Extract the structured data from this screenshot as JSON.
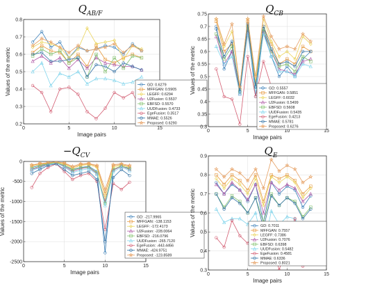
{
  "legend_labels": [
    "GD",
    "MFFGAN",
    "LEGFF",
    "U2Fusion",
    "EBFSD",
    "UUDFusion",
    "EgeFusion",
    "MMAE",
    "Proposed"
  ],
  "colors": [
    "#3a7fb8",
    "#e79a3f",
    "#ead35a",
    "#b05aa6",
    "#7fbf6a",
    "#7fd4ec",
    "#d25a6f",
    "#2f6fa3",
    "#e6a064"
  ],
  "markers": [
    "circle",
    "square",
    "diamond",
    "triangle",
    "square",
    "triangle",
    "circle",
    "circle",
    "star"
  ],
  "chart_data": [
    {
      "type": "line",
      "title_main": "Q",
      "title_sub": "AB/F",
      "title_prefix": "",
      "xlabel": "Image pairs",
      "ylabel": "Values of the metric",
      "xlim": [
        0,
        15
      ],
      "ylim": [
        0.2,
        0.8
      ],
      "xticks": [
        0,
        5,
        10,
        15
      ],
      "yticks": [
        0.2,
        0.3,
        0.4,
        0.5,
        0.6,
        0.7,
        0.8
      ],
      "ytick_labels": [
        "0.2",
        "0.3",
        "0.4",
        "0.5",
        "0.6",
        "0.7",
        "0.8"
      ],
      "x": [
        1,
        2,
        3,
        4,
        5,
        6,
        7,
        8,
        9,
        10,
        11,
        12,
        13
      ],
      "series": [
        {
          "name": "GD",
          "legend_value": "0.6279",
          "values": [
            0.67,
            0.73,
            0.64,
            0.67,
            0.58,
            0.64,
            0.62,
            0.63,
            0.65,
            0.64,
            0.6,
            0.66,
            0.62
          ]
        },
        {
          "name": "MFFGAN",
          "legend_value": "0.5905",
          "values": [
            0.61,
            0.65,
            0.62,
            0.61,
            0.55,
            0.6,
            0.53,
            0.65,
            0.57,
            0.55,
            0.58,
            0.6,
            0.58
          ]
        },
        {
          "name": "LEGFF",
          "legend_value": "0.6294",
          "values": [
            0.64,
            0.67,
            0.66,
            0.64,
            0.58,
            0.63,
            0.75,
            0.66,
            0.67,
            0.68,
            0.57,
            0.65,
            0.63
          ]
        },
        {
          "name": "U2Fusion",
          "legend_value": "0.5537",
          "values": [
            0.56,
            0.59,
            0.55,
            0.58,
            0.52,
            0.57,
            0.52,
            0.58,
            0.55,
            0.54,
            0.53,
            0.53,
            0.51
          ]
        },
        {
          "name": "EBFSD",
          "legend_value": "0.5570",
          "values": [
            0.59,
            0.63,
            0.6,
            0.62,
            0.55,
            0.58,
            0.47,
            0.6,
            0.5,
            0.58,
            0.52,
            0.59,
            0.58
          ]
        },
        {
          "name": "UUDFusion",
          "legend_value": "0.4733",
          "values": [
            0.5,
            0.55,
            0.42,
            0.49,
            0.47,
            0.5,
            0.43,
            0.46,
            0.46,
            0.45,
            0.43,
            0.44,
            0.47
          ]
        },
        {
          "name": "EgeFusion",
          "legend_value": "0.3517",
          "values": [
            0.42,
            0.38,
            0.27,
            0.4,
            0.41,
            0.37,
            0.27,
            0.23,
            0.29,
            0.38,
            0.35,
            0.38,
            0.27
          ]
        },
        {
          "name": "MMAE",
          "legend_value": "0.5526",
          "values": [
            0.6,
            0.61,
            0.56,
            0.56,
            0.57,
            0.58,
            0.47,
            0.54,
            0.53,
            0.5,
            0.55,
            0.53,
            0.51
          ]
        },
        {
          "name": "Proposed",
          "legend_value": "0.6290",
          "values": [
            0.65,
            0.69,
            0.67,
            0.64,
            0.61,
            0.65,
            0.62,
            0.63,
            0.64,
            0.66,
            0.61,
            0.65,
            0.62
          ]
        }
      ]
    },
    {
      "type": "line",
      "title_main": "Q",
      "title_sub": "CB",
      "title_prefix": "",
      "xlabel": "Image pairs",
      "ylabel": "Values of the metric",
      "xlim": [
        0,
        15
      ],
      "ylim": [
        0.3,
        0.75
      ],
      "xticks": [
        0,
        5,
        10,
        15
      ],
      "yticks": [
        0.3,
        0.35,
        0.4,
        0.45,
        0.5,
        0.55,
        0.6,
        0.65,
        0.7,
        0.75
      ],
      "ytick_labels": [
        "0.3",
        "0.35",
        "0.4",
        "0.45",
        "0.5",
        "0.55",
        "0.6",
        "0.65",
        "0.7",
        "0.75"
      ],
      "x": [
        1,
        2,
        3,
        4,
        5,
        6,
        7,
        8,
        9,
        10,
        11,
        12,
        13
      ],
      "series": [
        {
          "name": "GD",
          "legend_value": "0.5557",
          "values": [
            0.7,
            0.53,
            0.6,
            0.43,
            0.69,
            0.42,
            0.68,
            0.58,
            0.5,
            0.54,
            0.5,
            0.57,
            0.6
          ]
        },
        {
          "name": "MFFGAN",
          "legend_value": "0.5851",
          "values": [
            0.72,
            0.6,
            0.63,
            0.45,
            0.72,
            0.47,
            0.7,
            0.63,
            0.55,
            0.57,
            0.55,
            0.62,
            0.6
          ]
        },
        {
          "name": "LEGFF",
          "legend_value": "0.6032",
          "values": [
            0.73,
            0.62,
            0.68,
            0.46,
            0.73,
            0.48,
            0.73,
            0.64,
            0.58,
            0.6,
            0.57,
            0.66,
            0.63
          ]
        },
        {
          "name": "U2Fusion",
          "legend_value": "0.5499",
          "values": [
            0.66,
            0.55,
            0.6,
            0.43,
            0.68,
            0.46,
            0.68,
            0.6,
            0.53,
            0.52,
            0.51,
            0.56,
            0.57
          ]
        },
        {
          "name": "EBFSD",
          "legend_value": "0.5608",
          "values": [
            0.67,
            0.57,
            0.62,
            0.44,
            0.7,
            0.46,
            0.69,
            0.6,
            0.54,
            0.55,
            0.52,
            0.58,
            0.56
          ]
        },
        {
          "name": "UUDFusion",
          "legend_value": "0.5435",
          "values": [
            0.62,
            0.55,
            0.58,
            0.43,
            0.67,
            0.45,
            0.67,
            0.58,
            0.52,
            0.52,
            0.5,
            0.55,
            0.54
          ]
        },
        {
          "name": "EgeFusion",
          "legend_value": "0.4213",
          "values": [
            0.53,
            0.42,
            0.41,
            0.31,
            0.58,
            0.42,
            0.56,
            0.46,
            0.4,
            0.43,
            0.36,
            0.41,
            0.37
          ]
        },
        {
          "name": "MMAE",
          "legend_value": "0.5781",
          "values": [
            0.69,
            0.58,
            0.64,
            0.44,
            0.71,
            0.46,
            0.7,
            0.61,
            0.55,
            0.56,
            0.54,
            0.6,
            0.6
          ]
        },
        {
          "name": "Proposed",
          "legend_value": "0.6276",
          "values": [
            0.73,
            0.63,
            0.71,
            0.46,
            0.73,
            0.5,
            0.74,
            0.66,
            0.61,
            0.62,
            0.61,
            0.67,
            0.64
          ]
        }
      ]
    },
    {
      "type": "line",
      "title_main": "Q",
      "title_sub": "CV",
      "title_prefix": "−",
      "xlabel": "Image pairs",
      "ylabel": "Values of the metric",
      "xlim": [
        0,
        15
      ],
      "ylim": [
        -2500,
        0
      ],
      "xticks": [
        0,
        5,
        10,
        15
      ],
      "yticks": [
        -2500,
        -2000,
        -1500,
        -1000,
        -500,
        0
      ],
      "ytick_labels": [
        "-2500",
        "-2000",
        "-1500",
        "-1000",
        "-500",
        "0"
      ],
      "x": [
        1,
        2,
        3,
        4,
        5,
        6,
        7,
        8,
        9,
        10,
        11,
        12,
        13
      ],
      "series": [
        {
          "name": "GD",
          "legend_value": "-217.9965",
          "values": [
            -150,
            -100,
            -50,
            -30,
            -100,
            -200,
            -150,
            -120,
            -250,
            -2280,
            -200,
            -120,
            -170
          ]
        },
        {
          "name": "MFFGAN",
          "legend_value": "-138.1153",
          "values": [
            -100,
            -60,
            -40,
            -20,
            -50,
            -150,
            -80,
            -60,
            -120,
            -800,
            -100,
            -80,
            -120
          ]
        },
        {
          "name": "LEGFF",
          "legend_value": "-172.4173",
          "values": [
            -120,
            -80,
            -50,
            -20,
            -70,
            -180,
            -100,
            -80,
            -150,
            -900,
            -150,
            -90,
            -150
          ]
        },
        {
          "name": "U2Fusion",
          "legend_value": "-228.0064",
          "values": [
            -200,
            -140,
            -70,
            -40,
            -120,
            -250,
            -180,
            -150,
            -300,
            -1000,
            -220,
            -120,
            -200
          ]
        },
        {
          "name": "EBFSD",
          "legend_value": "-216.0796",
          "values": [
            -180,
            -120,
            -60,
            -30,
            -100,
            -220,
            -160,
            -140,
            -280,
            -1050,
            -200,
            -110,
            -190
          ]
        },
        {
          "name": "UUDFusion",
          "legend_value": "-265.7120",
          "values": [
            -220,
            -160,
            -80,
            -40,
            -140,
            -280,
            -220,
            -180,
            -320,
            -1100,
            -260,
            -140,
            -230
          ]
        },
        {
          "name": "EgeFusion",
          "legend_value": "-443.4456",
          "values": [
            -650,
            -300,
            -150,
            -60,
            -250,
            -450,
            -350,
            -300,
            -500,
            -1700,
            -550,
            -700,
            -520
          ]
        },
        {
          "name": "MMAE",
          "legend_value": "-424.9751",
          "values": [
            -300,
            -200,
            -100,
            -60,
            -200,
            -350,
            -300,
            -250,
            -450,
            -2000,
            -400,
            -200,
            -350
          ]
        },
        {
          "name": "Proposed",
          "legend_value": "-123.8589",
          "values": [
            -90,
            -50,
            -30,
            -10,
            -40,
            -120,
            -60,
            -50,
            -100,
            -700,
            -80,
            -60,
            -100
          ]
        }
      ]
    },
    {
      "type": "line",
      "title_main": "Q",
      "title_sub": "E",
      "title_prefix": "",
      "xlabel": "Image pairs",
      "ylabel": "Values of the metric",
      "xlim": [
        0,
        15
      ],
      "ylim": [
        0.3,
        0.9
      ],
      "xticks": [
        0,
        5,
        10,
        15
      ],
      "yticks": [
        0.3,
        0.4,
        0.5,
        0.6,
        0.7,
        0.8,
        0.9
      ],
      "ytick_labels": [
        "0.3",
        "0.4",
        "0.5",
        "0.6",
        "0.7",
        "0.8",
        "0.9"
      ],
      "x": [
        1,
        2,
        3,
        4,
        5,
        6,
        7,
        8,
        9,
        10,
        11,
        12,
        13
      ],
      "series": [
        {
          "name": "GD",
          "legend_value": "0.7011",
          "values": [
            0.76,
            0.7,
            0.75,
            0.72,
            0.66,
            0.75,
            0.55,
            0.76,
            0.7,
            0.74,
            0.72,
            0.63,
            0.69
          ]
        },
        {
          "name": "MFFGAN",
          "legend_value": "0.7557",
          "values": [
            0.8,
            0.75,
            0.8,
            0.77,
            0.72,
            0.8,
            0.66,
            0.8,
            0.78,
            0.8,
            0.77,
            0.7,
            0.74
          ]
        },
        {
          "name": "LEGFF",
          "legend_value": "0.7386",
          "values": [
            0.78,
            0.73,
            0.78,
            0.75,
            0.7,
            0.78,
            0.64,
            0.79,
            0.76,
            0.79,
            0.76,
            0.68,
            0.73
          ]
        },
        {
          "name": "U2Fusion",
          "legend_value": "0.7076",
          "values": [
            0.75,
            0.7,
            0.76,
            0.72,
            0.67,
            0.75,
            0.6,
            0.76,
            0.72,
            0.75,
            0.73,
            0.66,
            0.7
          ]
        },
        {
          "name": "EBFSD",
          "legend_value": "0.6398",
          "values": [
            0.7,
            0.63,
            0.69,
            0.66,
            0.6,
            0.68,
            0.55,
            0.7,
            0.64,
            0.68,
            0.66,
            0.58,
            0.63
          ]
        },
        {
          "name": "UUDFusion",
          "legend_value": "0.5482",
          "values": [
            0.62,
            0.55,
            0.57,
            0.57,
            0.54,
            0.6,
            0.42,
            0.61,
            0.54,
            0.58,
            0.57,
            0.48,
            0.52
          ]
        },
        {
          "name": "EgeFusion",
          "legend_value": "0.4581",
          "values": [
            0.47,
            0.42,
            0.56,
            0.48,
            0.44,
            0.52,
            0.4,
            0.45,
            0.3,
            0.44,
            0.57,
            0.32,
            0.38
          ]
        },
        {
          "name": "MMAE",
          "legend_value": "0.6336",
          "values": [
            0.7,
            0.62,
            0.68,
            0.65,
            0.6,
            0.68,
            0.52,
            0.69,
            0.64,
            0.68,
            0.65,
            0.57,
            0.62
          ]
        },
        {
          "name": "Proposed",
          "legend_value": "0.8021",
          "values": [
            0.83,
            0.79,
            0.83,
            0.81,
            0.77,
            0.83,
            0.73,
            0.88,
            0.82,
            0.85,
            0.83,
            0.76,
            0.79
          ]
        }
      ]
    }
  ]
}
